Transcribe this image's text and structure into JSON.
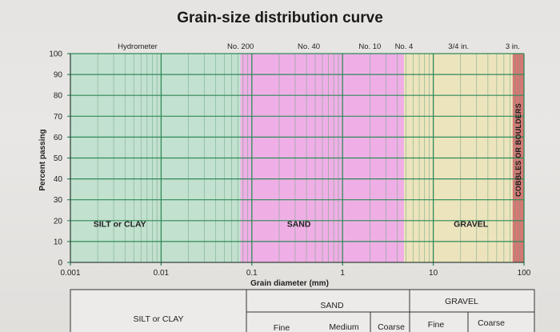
{
  "chart_data": {
    "type": "line",
    "title": "Grain-size distribution curve",
    "xlabel": "Grain diameter (mm)",
    "ylabel": "Percent passing",
    "x_scale": "log",
    "xlim": [
      0.001,
      100
    ],
    "ylim": [
      0,
      100
    ],
    "grid": true,
    "x_ticks": [
      {
        "value": 0.001,
        "label": "0.001"
      },
      {
        "value": 0.01,
        "label": "0.01"
      },
      {
        "value": 0.1,
        "label": "0.1"
      },
      {
        "value": 1,
        "label": "1"
      },
      {
        "value": 10,
        "label": "10"
      },
      {
        "value": 100,
        "label": "100"
      }
    ],
    "y_ticks": [
      0,
      10,
      20,
      30,
      40,
      50,
      60,
      70,
      80,
      90,
      100
    ],
    "sieve_labels": [
      {
        "label": "Hydrometer",
        "x": 0.0055
      },
      {
        "label": "No. 200",
        "x": 0.075
      },
      {
        "label": "No. 40",
        "x": 0.425
      },
      {
        "label": "No. 10",
        "x": 2.0
      },
      {
        "label": "No. 4",
        "x": 4.75
      },
      {
        "label": "3/4 in.",
        "x": 19
      },
      {
        "label": "3 in.",
        "x": 75
      }
    ],
    "zones": [
      {
        "label": "SILT or CLAY",
        "from": 0.001,
        "to": 0.075,
        "color": "#bfe0cd",
        "label_x": 0.0035
      },
      {
        "label": "SAND",
        "from": 0.075,
        "to": 4.75,
        "color": "#f0a8e6",
        "label_x": 0.33
      },
      {
        "label": "GRAVEL",
        "from": 4.75,
        "to": 75,
        "color": "#ece3b8",
        "label_x": 26
      },
      {
        "label": "COBBLES OR BOULDERS",
        "from": 75,
        "to": 100,
        "color": "#d46a66",
        "vertical": true
      }
    ],
    "series": []
  },
  "classification_table": {
    "silt_clay": "SILT or CLAY",
    "sand": "SAND",
    "gravel": "GRAVEL",
    "sand_fine": "Fine",
    "sand_medium": "Medium",
    "sand_coarse": "Coarse",
    "gravel_fine": "Fine",
    "gravel_coarse": "Coarse"
  },
  "colors": {
    "grid_major": "#2f8a5a",
    "grid_minor": "#6ea885",
    "axis": "#333333"
  }
}
